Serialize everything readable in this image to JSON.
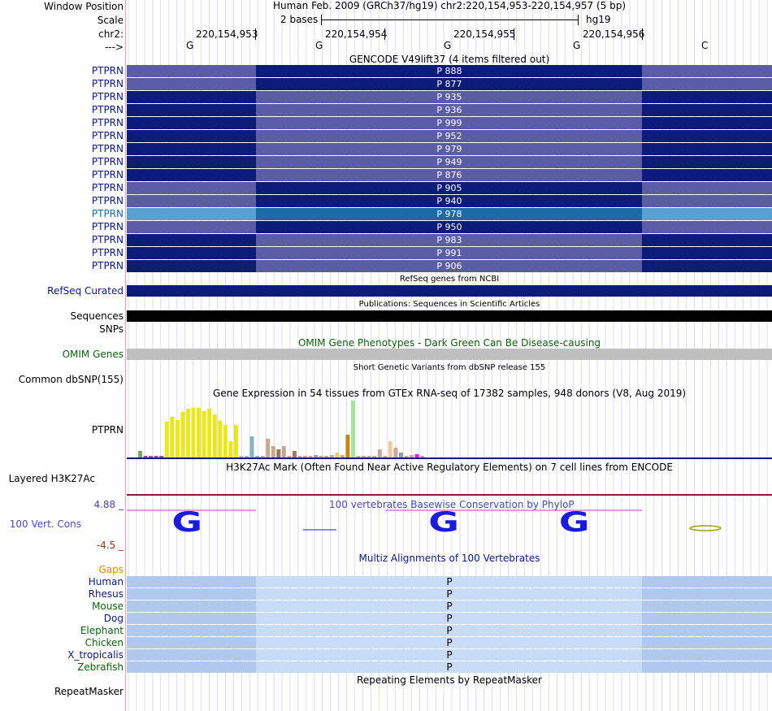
{
  "header": {
    "window_label": "Window Position",
    "scale_label": "Scale",
    "chr_label": "chr2:",
    "strand_label": "--->",
    "assembly_text": "Human Feb. 2009 (GRCh37/hg19)   chr2:220,154,953-220,154,957 (5 bp)",
    "scale_text": "2 bases",
    "scale_db": "hg19",
    "positions": [
      "220,154,953",
      "220,154,954",
      "220,154,955",
      "220,154,956"
    ],
    "bases": [
      "G",
      "G",
      "G",
      "G",
      "C"
    ]
  },
  "gencode": {
    "title": "GENCODE V49lift37 (4 items filtered out)",
    "colors": {
      "dark": "#0c1a78",
      "light": "#5b5ca6",
      "highlight_dark": "#1a6aa6",
      "highlight_light": "#5aa0d0"
    },
    "rows": [
      {
        "gene": "PTPRN",
        "label": "P 888",
        "style": "light"
      },
      {
        "gene": "PTPRN",
        "label": "P 877",
        "style": "light"
      },
      {
        "gene": "PTPRN",
        "label": "P 935",
        "style": "dark"
      },
      {
        "gene": "PTPRN",
        "label": "P 936",
        "style": "dark"
      },
      {
        "gene": "PTPRN",
        "label": "P 999",
        "style": "dark"
      },
      {
        "gene": "PTPRN",
        "label": "P 952",
        "style": "dark"
      },
      {
        "gene": "PTPRN",
        "label": "P 979",
        "style": "dark"
      },
      {
        "gene": "PTPRN",
        "label": "P 949",
        "style": "dark"
      },
      {
        "gene": "PTPRN",
        "label": "P 876",
        "style": "dark"
      },
      {
        "gene": "PTPRN",
        "label": "P 905",
        "style": "light"
      },
      {
        "gene": "PTPRN",
        "label": "P 940",
        "style": "light"
      },
      {
        "gene": "PTPRN",
        "label": "P 978",
        "style": "highlight"
      },
      {
        "gene": "PTPRN",
        "label": "P 950",
        "style": "light"
      },
      {
        "gene": "PTPRN",
        "label": "P 983",
        "style": "dark"
      },
      {
        "gene": "PTPRN",
        "label": "P 991",
        "style": "dark"
      },
      {
        "gene": "PTPRN",
        "label": "P 906",
        "style": "dark"
      }
    ]
  },
  "refseq": {
    "title": "RefSeq genes from NCBI",
    "label": "RefSeq Curated"
  },
  "publications": {
    "title": "Publications: Sequences in Scientific Articles",
    "label": "Sequences"
  },
  "snps": {
    "label": "SNPs"
  },
  "omim": {
    "title": "OMIM Gene Phenotypes - Dark Green Can Be Disease-causing",
    "label": "OMIM Genes"
  },
  "dbsnp": {
    "title": "Short Genetic Variants from dbSNP release 155",
    "label": "Common dbSNP(155)"
  },
  "gtex": {
    "title": "Gene Expression in 54 tissues from GTEx RNA-seq of 17382 samples, 948 donors (V8, Aug 2019)",
    "label": "PTPRN",
    "bars": [
      {
        "h": 8,
        "c": "#7aa865"
      },
      {
        "h": 2,
        "c": "#8a5a9a"
      },
      {
        "h": 2,
        "c": "#8a5a9a"
      },
      {
        "h": 2,
        "c": "#8a5a9a"
      },
      {
        "h": 2,
        "c": "#8a5a9a"
      },
      {
        "h": 44,
        "c": "#e8e81a"
      },
      {
        "h": 50,
        "c": "#e8e81a"
      },
      {
        "h": 46,
        "c": "#e8e81a"
      },
      {
        "h": 56,
        "c": "#e8e81a"
      },
      {
        "h": 60,
        "c": "#e8e81a"
      },
      {
        "h": 61,
        "c": "#e8e81a"
      },
      {
        "h": 61,
        "c": "#e8e81a"
      },
      {
        "h": 57,
        "c": "#e8e81a"
      },
      {
        "h": 60,
        "c": "#e8e81a"
      },
      {
        "h": 53,
        "c": "#e8e81a"
      },
      {
        "h": 45,
        "c": "#e8e81a"
      },
      {
        "h": 40,
        "c": "#e8e81a"
      },
      {
        "h": 20,
        "c": "#e8e81a"
      },
      {
        "h": 40,
        "c": "#e8e81a"
      },
      {
        "h": 2,
        "c": "#b0b0b0"
      },
      {
        "h": 2,
        "c": "#b0b0b0"
      },
      {
        "h": 26,
        "c": "#8ab2c0"
      },
      {
        "h": 2,
        "c": "#8ab2c0"
      },
      {
        "h": 2,
        "c": "#c8a890"
      },
      {
        "h": 23,
        "c": "#c8a890"
      },
      {
        "h": 14,
        "c": "#c8a890"
      },
      {
        "h": 10,
        "c": "#9a7a5a"
      },
      {
        "h": 14,
        "c": "#c8a890"
      },
      {
        "h": 2,
        "c": "#c8a890"
      },
      {
        "h": 8,
        "c": "#9a7a5a"
      },
      {
        "h": 2,
        "c": "#c8a890"
      },
      {
        "h": 2,
        "c": "#c8a890"
      },
      {
        "h": 2,
        "c": "#c8a890"
      },
      {
        "h": 3,
        "c": "#8aa0c0"
      },
      {
        "h": 2,
        "c": "#c8a890"
      },
      {
        "h": 2,
        "c": "#c8a890"
      },
      {
        "h": 3,
        "c": "#c8a890"
      },
      {
        "h": 6,
        "c": "#e8c870"
      },
      {
        "h": 3,
        "c": "#c8a890"
      },
      {
        "h": 28,
        "c": "#c08a1a"
      },
      {
        "h": 70,
        "c": "#a8e0a0"
      },
      {
        "h": 2,
        "c": "#c8a890"
      },
      {
        "h": 2,
        "c": "#c8a890"
      },
      {
        "h": 2,
        "c": "#c8a890"
      },
      {
        "h": 2,
        "c": "#c8a890"
      },
      {
        "h": 10,
        "c": "#c8a890"
      },
      {
        "h": 2,
        "c": "#c8a890"
      },
      {
        "h": 20,
        "c": "#f0c8a0"
      },
      {
        "h": 12,
        "c": "#c8a890"
      },
      {
        "h": 6,
        "c": "#8aa0a0"
      },
      {
        "h": 2,
        "c": "#c8a890"
      },
      {
        "h": 3,
        "c": "#c8a890"
      },
      {
        "h": 4,
        "c": "#e020e0"
      },
      {
        "h": 2,
        "c": "#c8a890"
      }
    ]
  },
  "h3k27ac": {
    "title": "H3K27Ac Mark (Often Found Near Active Regulatory Elements) on 7 cell lines from ENCODE",
    "label": "Layered H3K27Ac"
  },
  "conservation": {
    "title": "100 vertebrates Basewise Conservation by PhyloP",
    "label": "100 Vert. Cons",
    "max_label": "4.88 _",
    "min_label": "-4.5 _"
  },
  "multiz": {
    "title": "Multiz Alignments of 100 Vertebrates",
    "gaps_label": "Gaps",
    "species": [
      {
        "name": "Human",
        "color": "#0c1a78"
      },
      {
        "name": "Rhesus",
        "color": "#0c1a78"
      },
      {
        "name": "Mouse",
        "color": "#106010"
      },
      {
        "name": "Dog",
        "color": "#0c1a78"
      },
      {
        "name": "Elephant",
        "color": "#106010"
      },
      {
        "name": "Chicken",
        "color": "#106010"
      },
      {
        "name": "X_tropicalis",
        "color": "#0c1a78"
      },
      {
        "name": "Zebrafish",
        "color": "#106010"
      }
    ],
    "base": "P"
  },
  "repeatmasker": {
    "title": "Repeating Elements by RepeatMasker",
    "label": "RepeatMasker"
  }
}
